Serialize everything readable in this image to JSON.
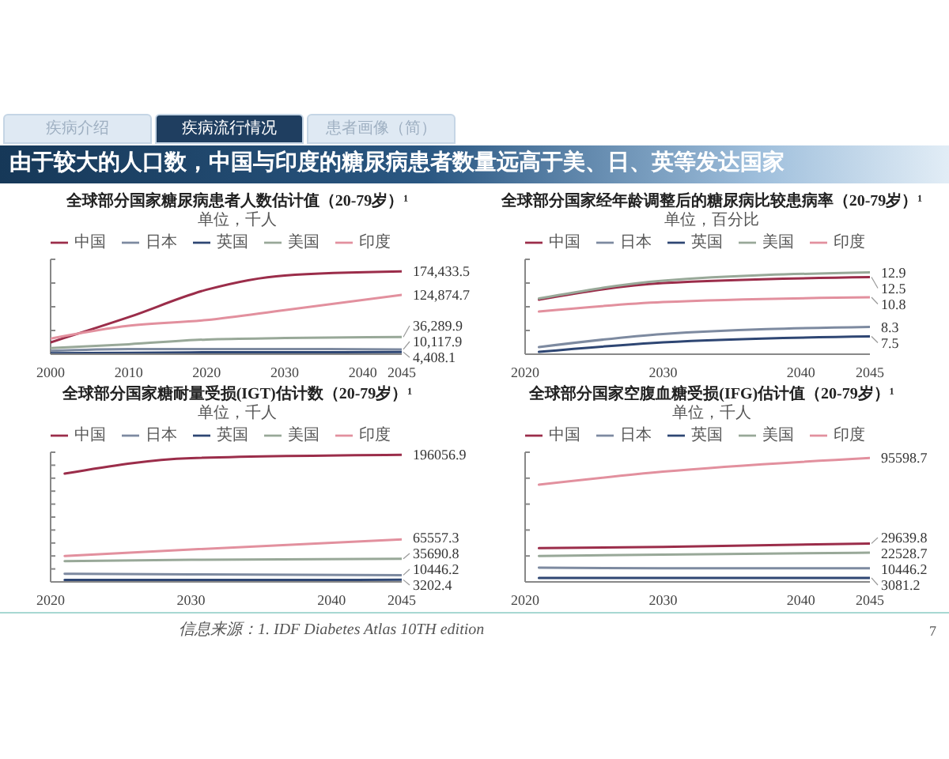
{
  "chart_data": [
    {
      "type": "other",
      "title": "由于较大的人口数，中国与印度的糖尿病患者数量远高于美、日、英等发达国家",
      "annotations": [
        "疾病介绍",
        "疾病流行情况",
        "患者画像（简）"
      ]
    },
    {
      "type": "line",
      "title": "全球部分国家糖尿病患者人数估计值（20-79岁）¹",
      "subtitle": "单位，千人",
      "x": [
        2000,
        2010,
        2020,
        2030,
        2045
      ],
      "xlim": [
        2000,
        2045
      ],
      "xticks": [
        2000,
        2010,
        2020,
        2030,
        2040,
        2045
      ],
      "ylim": [
        0,
        200000
      ],
      "yticks": [
        {
          "value": 0,
          "label": null
        },
        {
          "value": 50000,
          "label": null
        },
        {
          "value": 100000,
          "label": null
        },
        {
          "value": 150000,
          "label": null
        },
        {
          "value": 200000,
          "label": null
        }
      ],
      "tick_labels": "x",
      "legend": "top",
      "series": [
        {
          "name": "中国",
          "color": "#9b2d4a",
          "values": [
            25000,
            78000,
            136000,
            166000,
            174433.5
          ],
          "value_labels": [
            null,
            null,
            null,
            null,
            "174,433.5"
          ]
        },
        {
          "name": "日本",
          "color": "#7d8aa0",
          "values": [
            7000,
            11000,
            11000,
            11000,
            10117.9
          ],
          "value_labels": [
            null,
            null,
            null,
            null,
            "10,117.9"
          ]
        },
        {
          "name": "英国",
          "color": "#2e4673",
          "values": [
            2000,
            3000,
            4000,
            4000,
            4408.1
          ],
          "value_labels": [
            null,
            null,
            null,
            null,
            "4,408.1"
          ]
        },
        {
          "name": "美国",
          "color": "#98a898",
          "values": [
            13000,
            21000,
            31000,
            34000,
            36289.9
          ],
          "value_labels": [
            null,
            null,
            null,
            null,
            "36,289.9"
          ]
        },
        {
          "name": "印度",
          "color": "#e2909e",
          "values": [
            33000,
            60000,
            72000,
            93000,
            124874.7
          ],
          "value_labels": [
            null,
            null,
            null,
            null,
            "124,874.7"
          ]
        }
      ]
    },
    {
      "type": "line",
      "title": "全球部分国家经年龄调整后的糖尿病比较患病率（20-79岁）¹",
      "subtitle": "单位，百分比",
      "x": [
        2021,
        2030,
        2045
      ],
      "xlim": [
        2020,
        2045
      ],
      "xticks": [
        2020,
        2030,
        2040,
        2045
      ],
      "ylim": [
        6,
        14
      ],
      "yticks": [
        {
          "value": 6,
          "label": null
        },
        {
          "value": 8,
          "label": null
        },
        {
          "value": 10,
          "label": null
        },
        {
          "value": 12,
          "label": null
        },
        {
          "value": 14,
          "label": null
        }
      ],
      "tick_labels": "x",
      "legend": "top",
      "series": [
        {
          "name": "中国",
          "color": "#9b2d4a",
          "values": [
            10.6,
            12.0,
            12.5
          ],
          "value_labels": [
            null,
            null,
            "12.5"
          ]
        },
        {
          "name": "日本",
          "color": "#7d8aa0",
          "values": [
            6.6,
            7.7,
            8.3
          ],
          "value_labels": [
            null,
            null,
            "8.3"
          ]
        },
        {
          "name": "英国",
          "color": "#2e4673",
          "values": [
            6.2,
            7.0,
            7.5
          ],
          "value_labels": [
            null,
            null,
            "7.5"
          ]
        },
        {
          "name": "美国",
          "color": "#98a898",
          "values": [
            10.7,
            12.2,
            12.9
          ],
          "value_labels": [
            null,
            null,
            "12.9"
          ]
        },
        {
          "name": "印度",
          "color": "#e2909e",
          "values": [
            9.6,
            10.4,
            10.8
          ],
          "value_labels": [
            null,
            null,
            "10.8"
          ]
        }
      ]
    },
    {
      "type": "line",
      "title": "全球部分国家糖耐量受损(IGT)估计数（20-79岁）¹",
      "subtitle": "单位，千人",
      "x": [
        2021,
        2030,
        2045
      ],
      "xlim": [
        2020,
        2045
      ],
      "xticks": [
        2020,
        2030,
        2040,
        2045
      ],
      "ylim": [
        0,
        200000
      ],
      "yticks": [
        {
          "value": 0,
          "label": null
        },
        {
          "value": 20000,
          "label": null
        },
        {
          "value": 40000,
          "label": null
        },
        {
          "value": 60000,
          "label": null
        },
        {
          "value": 80000,
          "label": null
        },
        {
          "value": 100000,
          "label": null
        },
        {
          "value": 120000,
          "label": null
        },
        {
          "value": 140000,
          "label": null
        },
        {
          "value": 160000,
          "label": null
        },
        {
          "value": 180000,
          "label": null
        },
        {
          "value": 200000,
          "label": null
        }
      ],
      "tick_labels": "x",
      "legend": "top",
      "series": [
        {
          "name": "中国",
          "color": "#9b2d4a",
          "values": [
            167000,
            191000,
            196056.9
          ],
          "value_labels": [
            null,
            null,
            "196056.9"
          ]
        },
        {
          "name": "日本",
          "color": "#7d8aa0",
          "values": [
            12500,
            11500,
            10446.2
          ],
          "value_labels": [
            null,
            null,
            "10446.2"
          ]
        },
        {
          "name": "英国",
          "color": "#2e4673",
          "values": [
            3000,
            3000,
            3202.4
          ],
          "value_labels": [
            null,
            null,
            "3202.4"
          ]
        },
        {
          "name": "美国",
          "color": "#98a898",
          "values": [
            32000,
            34000,
            35690.8
          ],
          "value_labels": [
            null,
            null,
            "35690.8"
          ]
        },
        {
          "name": "印度",
          "color": "#e2909e",
          "values": [
            40000,
            50000,
            65557.3
          ],
          "value_labels": [
            null,
            null,
            "65557.3"
          ]
        }
      ]
    },
    {
      "type": "line",
      "title": "全球部分国家空腹血糖受损(IFG)估计值（20-79岁）¹",
      "subtitle": "单位，千人",
      "x": [
        2021,
        2030,
        2045
      ],
      "xlim": [
        2020,
        2045
      ],
      "xticks": [
        2020,
        2030,
        2040,
        2045
      ],
      "ylim": [
        0,
        100000
      ],
      "yticks": [
        {
          "value": 0,
          "label": null
        },
        {
          "value": 20000,
          "label": null
        },
        {
          "value": 40000,
          "label": null
        },
        {
          "value": 60000,
          "label": null
        },
        {
          "value": 80000,
          "label": null
        },
        {
          "value": 100000,
          "label": null
        }
      ],
      "tick_labels": "x",
      "legend": "top",
      "series": [
        {
          "name": "中国",
          "color": "#9b2d4a",
          "values": [
            26000,
            27000,
            29639.8
          ],
          "value_labels": [
            null,
            null,
            "29639.8"
          ]
        },
        {
          "name": "日本",
          "color": "#7d8aa0",
          "values": [
            11000,
            10500,
            10446.2
          ],
          "value_labels": [
            null,
            null,
            "10446.2"
          ]
        },
        {
          "name": "英国",
          "color": "#2e4673",
          "values": [
            3000,
            3000,
            3081.2
          ],
          "value_labels": [
            null,
            null,
            "3081.2"
          ]
        },
        {
          "name": "美国",
          "color": "#98a898",
          "values": [
            20000,
            21000,
            22528.7
          ],
          "value_labels": [
            null,
            null,
            "22528.7"
          ]
        },
        {
          "name": "印度",
          "color": "#e2909e",
          "values": [
            75000,
            85000,
            95598.7
          ],
          "value_labels": [
            null,
            null,
            "95598.7"
          ]
        }
      ]
    },
    {
      "type": "other",
      "annotations": [
        "信息来源：1. IDF Diabetes Atlas 10TH edition",
        "7"
      ]
    }
  ]
}
